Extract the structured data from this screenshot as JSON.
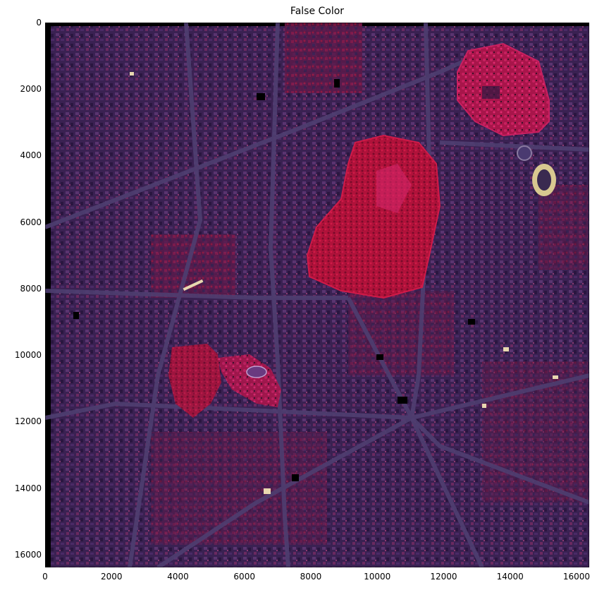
{
  "title": "False Color",
  "image": {
    "description_colors": {
      "background": "#3b1f52",
      "urban_dark": "#2a1840",
      "vegetation_red": "#c0153a",
      "vegetation_pink": "#d4266a",
      "roads": "#4a3a6a",
      "bright": "#e8d8b0"
    }
  },
  "axes": {
    "xlim": [
      0,
      16384
    ],
    "ylim": [
      16384,
      0
    ],
    "xticks": [
      "0",
      "2000",
      "4000",
      "6000",
      "8000",
      "10000",
      "12000",
      "14000",
      "16000"
    ],
    "yticks": [
      "0",
      "2000",
      "4000",
      "6000",
      "8000",
      "10000",
      "12000",
      "14000",
      "16000"
    ],
    "tick_values": [
      0,
      2000,
      4000,
      6000,
      8000,
      10000,
      12000,
      14000,
      16000
    ]
  }
}
